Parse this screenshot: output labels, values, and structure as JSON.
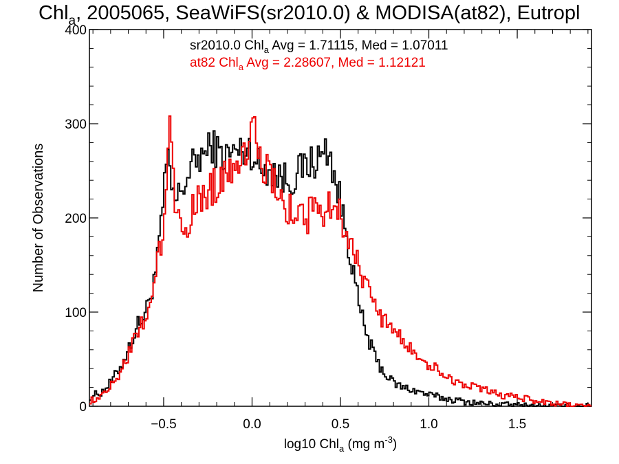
{
  "chart_data": {
    "type": "line",
    "title": {
      "pre": "Chl",
      "sub": "a",
      "post": ", 2005065, SeaWiFS(sr2010.0) & MODISA(at82), Eutropl"
    },
    "xlabel": {
      "pre": "log10 Chl",
      "sub": "a",
      "mid": " (mg m",
      "sup": "-3",
      "post": ")"
    },
    "ylabel": "Number of Observations",
    "xlim": [
      -0.92,
      1.92
    ],
    "ylim": [
      0,
      400
    ],
    "x_ticks": [
      {
        "value": -0.5,
        "label": "−0.5"
      },
      {
        "value": 0.0,
        "label": "0.0"
      },
      {
        "value": 0.5,
        "label": "0.5"
      },
      {
        "value": 1.0,
        "label": "1.0"
      },
      {
        "value": 1.5,
        "label": "1.5"
      }
    ],
    "x_minor_step": 0.1,
    "y_ticks": [
      {
        "value": 0,
        "label": "0"
      },
      {
        "value": 100,
        "label": "100"
      },
      {
        "value": 200,
        "label": "200"
      },
      {
        "value": 300,
        "label": "300"
      },
      {
        "value": 400,
        "label": "400"
      }
    ],
    "y_minor_step": 20,
    "grid": false,
    "bin_width": 0.01,
    "annotations": [
      {
        "pre": "sr2010.0 Chl",
        "sub": "a",
        "post": " Avg = 1.71115, Med = 1.07011",
        "color": "#000000"
      },
      {
        "pre": "at82 Chl",
        "sub": "a",
        "post": " Avg = 2.28607, Med = 1.12121",
        "color": "#ee0000"
      }
    ],
    "series": [
      {
        "color": "#000000",
        "x": [
          -0.92,
          -0.85,
          -0.8,
          -0.75,
          -0.7,
          -0.65,
          -0.6,
          -0.56,
          -0.53,
          -0.51,
          -0.49,
          -0.47,
          -0.45,
          -0.43,
          -0.4,
          -0.35,
          -0.3,
          -0.25,
          -0.22,
          -0.2,
          -0.15,
          -0.1,
          -0.05,
          -0.02,
          0.0,
          0.05,
          0.1,
          0.15,
          0.2,
          0.25,
          0.3,
          0.35,
          0.4,
          0.42,
          0.45,
          0.5,
          0.55,
          0.6,
          0.65,
          0.7,
          0.75,
          0.8,
          0.85,
          0.9,
          1.0,
          1.1,
          1.2,
          1.3,
          1.5,
          1.7,
          1.92
        ],
        "y": [
          10,
          15,
          25,
          40,
          60,
          85,
          100,
          130,
          160,
          200,
          250,
          255,
          225,
          215,
          230,
          250,
          265,
          270,
          280,
          270,
          265,
          270,
          270,
          275,
          270,
          250,
          255,
          245,
          240,
          245,
          255,
          260,
          265,
          275,
          260,
          215,
          170,
          110,
          75,
          50,
          35,
          25,
          20,
          18,
          12,
          8,
          5,
          3,
          1,
          0,
          0
        ]
      },
      {
        "color": "#ee0000",
        "x": [
          -0.92,
          -0.85,
          -0.8,
          -0.75,
          -0.7,
          -0.65,
          -0.6,
          -0.56,
          -0.53,
          -0.5,
          -0.48,
          -0.47,
          -0.46,
          -0.45,
          -0.43,
          -0.4,
          -0.35,
          -0.3,
          -0.25,
          -0.2,
          -0.15,
          -0.1,
          -0.05,
          -0.02,
          0.0,
          0.02,
          0.05,
          0.1,
          0.15,
          0.2,
          0.25,
          0.3,
          0.35,
          0.4,
          0.45,
          0.5,
          0.55,
          0.6,
          0.65,
          0.7,
          0.75,
          0.8,
          0.85,
          0.9,
          1.0,
          1.1,
          1.2,
          1.3,
          1.4,
          1.5,
          1.6,
          1.7,
          1.8,
          1.92
        ],
        "y": [
          5,
          12,
          22,
          35,
          55,
          75,
          95,
          125,
          155,
          190,
          245,
          315,
          318,
          255,
          210,
          190,
          200,
          220,
          230,
          235,
          250,
          260,
          270,
          280,
          295,
          285,
          260,
          245,
          220,
          210,
          205,
          200,
          205,
          210,
          215,
          205,
          180,
          150,
          125,
          105,
          90,
          80,
          70,
          60,
          45,
          32,
          22,
          18,
          12,
          10,
          6,
          3,
          1,
          0
        ]
      }
    ]
  }
}
